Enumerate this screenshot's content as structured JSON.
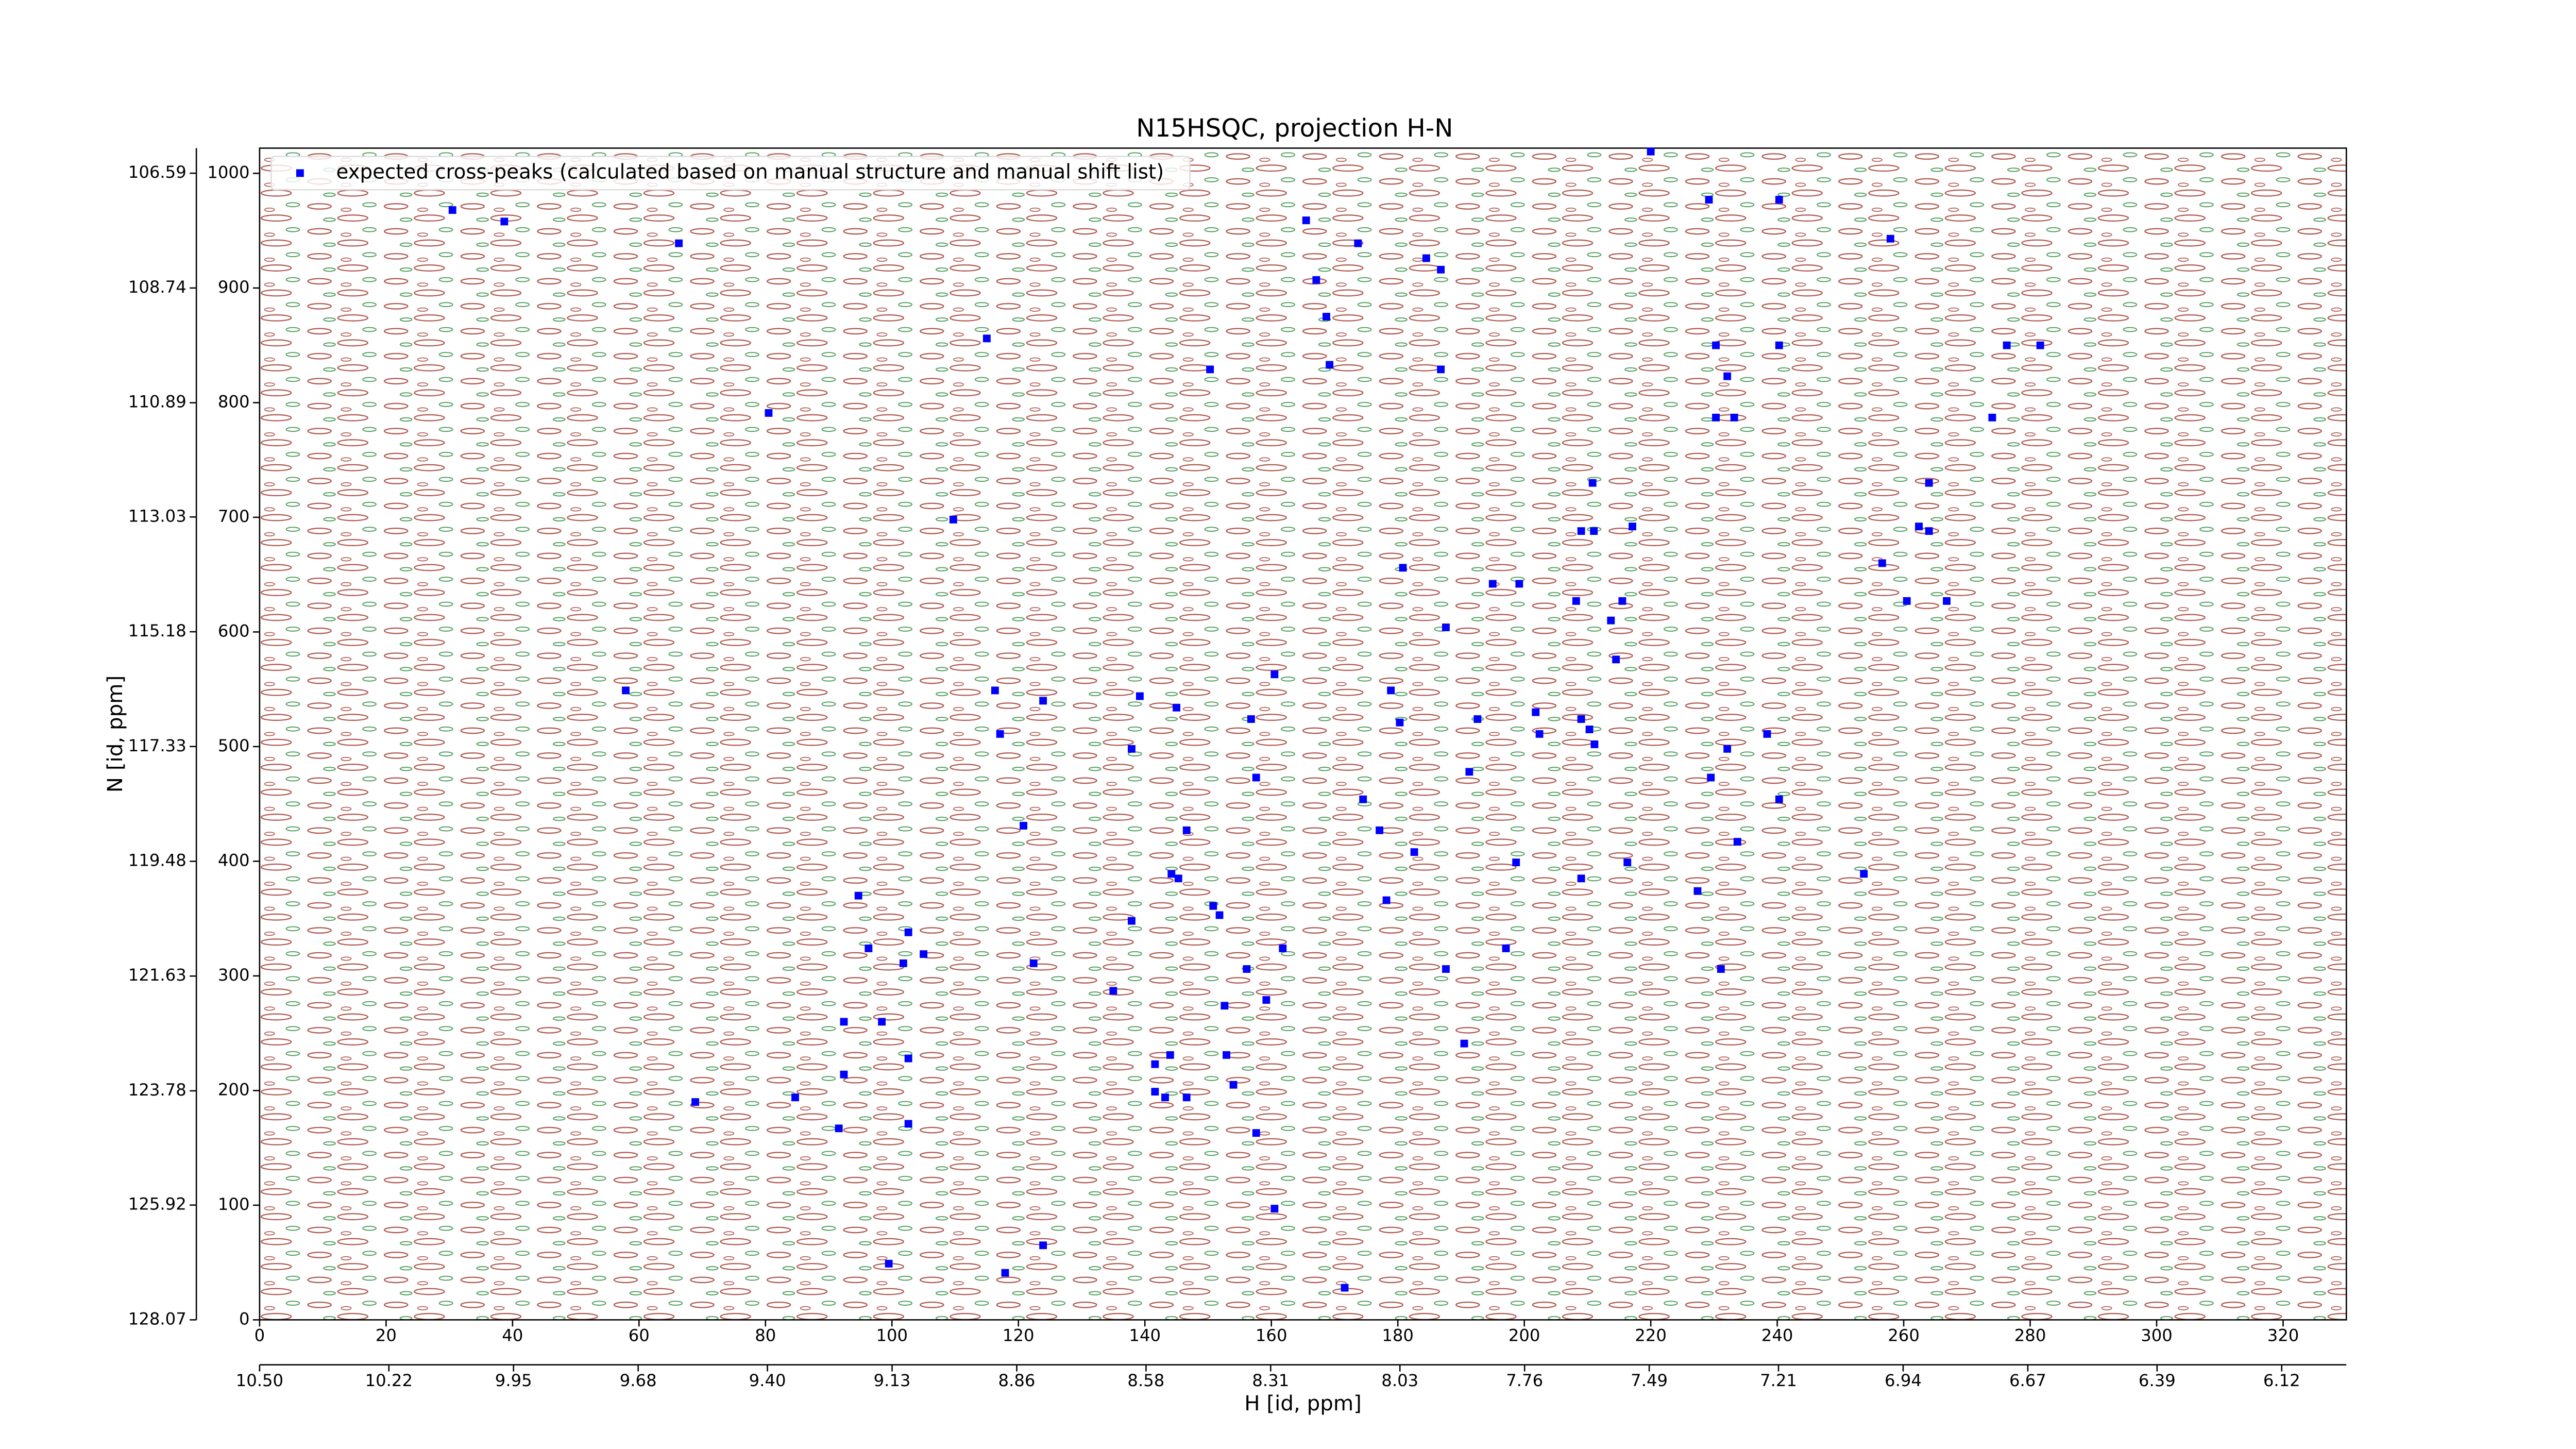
{
  "chart_data": {
    "type": "scatter",
    "title": "N15HSQC, projection H-N",
    "x_label": "H [id, ppm]",
    "y_label": "N [id, ppm]",
    "xlim": [
      0,
      330
    ],
    "ylim": [
      0,
      1022
    ],
    "xticks": [
      0,
      20,
      40,
      60,
      80,
      100,
      120,
      140,
      160,
      180,
      200,
      220,
      240,
      260,
      280,
      300,
      320
    ],
    "yticks": [
      0,
      100,
      200,
      300,
      400,
      500,
      600,
      700,
      800,
      900,
      1000
    ],
    "x2lim": [
      10.5,
      5.98
    ],
    "x2ticks": [
      {
        "value": 10.5,
        "label": "10.50"
      },
      10.22,
      9.95,
      9.68,
      {
        "value": 9.4,
        "label": "9.40"
      },
      9.13,
      8.86,
      8.58,
      8.31,
      8.03,
      7.76,
      7.49,
      7.21,
      6.94,
      6.67,
      6.39,
      6.12
    ],
    "y2lim": [
      128.07,
      106.12
    ],
    "y2ticks": [
      128.07,
      125.92,
      123.78,
      121.63,
      119.48,
      117.33,
      115.18,
      113.03,
      110.89,
      108.74,
      106.59
    ],
    "legend": "upper left",
    "series": [
      {
        "name": "expected cross-peaks (calculated based on manual structure and manual shift list)",
        "color": "#0000ff",
        "x": [
          30.5,
          38.7,
          66.3,
          220,
          229.2,
          240.3,
          257.9,
          165.5,
          173.7,
          184.5,
          186.8,
          167.1,
          168.7,
          115,
          230.3,
          240.3,
          276.3,
          281.6,
          150.3,
          169.2,
          186.8,
          232.1,
          80.5,
          230.3,
          233.2,
          274,
          210.8,
          264,
          109.7,
          209,
          211,
          217.1,
          262.4,
          264,
          180.8,
          195,
          199.2,
          256.6,
          208.2,
          215.5,
          260.5,
          266.8,
          187.6,
          213.7,
          214.5,
          57.9,
          116.3,
          160.5,
          178.9,
          123.9,
          139.2,
          145,
          156.8,
          180.3,
          192.6,
          201.8,
          209,
          210.3,
          202.4,
          211.1,
          117.1,
          137.9,
          238.4,
          232.1,
          157.6,
          191.3,
          229.5,
          174.5,
          240.3,
          120.8,
          146.6,
          177.1,
          182.6,
          233.7,
          198.7,
          216.3,
          253.7,
          144.2,
          145.3,
          209,
          94.7,
          150.8,
          151.8,
          178.2,
          227.4,
          137.9,
          102.6,
          96.3,
          105,
          101.8,
          161.8,
          197.1,
          122.4,
          156.1,
          187.6,
          231.1,
          135,
          152.6,
          159.2,
          92.4,
          98.4,
          102.6,
          144,
          141.6,
          152.9,
          190.5,
          92.4,
          154,
          141.6,
          143.2,
          146.6,
          68.9,
          84.7,
          91.6,
          102.6,
          157.6,
          160.5,
          123.9,
          99.5,
          117.9,
          171.6
        ],
        "values": [
          968,
          958,
          939,
          1019,
          977,
          977,
          943,
          959,
          939,
          926,
          916,
          907,
          875,
          856,
          850,
          850,
          850,
          850,
          829,
          833,
          829,
          823,
          791,
          787,
          787,
          787,
          730,
          730,
          698,
          688,
          688,
          692,
          692,
          688,
          656,
          642,
          642,
          660,
          627,
          627,
          627,
          627,
          604,
          610,
          576,
          549,
          549,
          563,
          549,
          540,
          544,
          534,
          524,
          521,
          524,
          530,
          524,
          515,
          511,
          502,
          511,
          498,
          511,
          498,
          473,
          478,
          473,
          454,
          454,
          431,
          427,
          427,
          408,
          417,
          399,
          399,
          389,
          389,
          385,
          385,
          370,
          361,
          353,
          366,
          374,
          348,
          338,
          324,
          319,
          311,
          324,
          324,
          311,
          306,
          306,
          306,
          287,
          274,
          279,
          260,
          260,
          228,
          231,
          223,
          231,
          241,
          214,
          205,
          199,
          194,
          194,
          190,
          194,
          167,
          171,
          163,
          97,
          65,
          49,
          41,
          28
        ]
      }
    ]
  }
}
